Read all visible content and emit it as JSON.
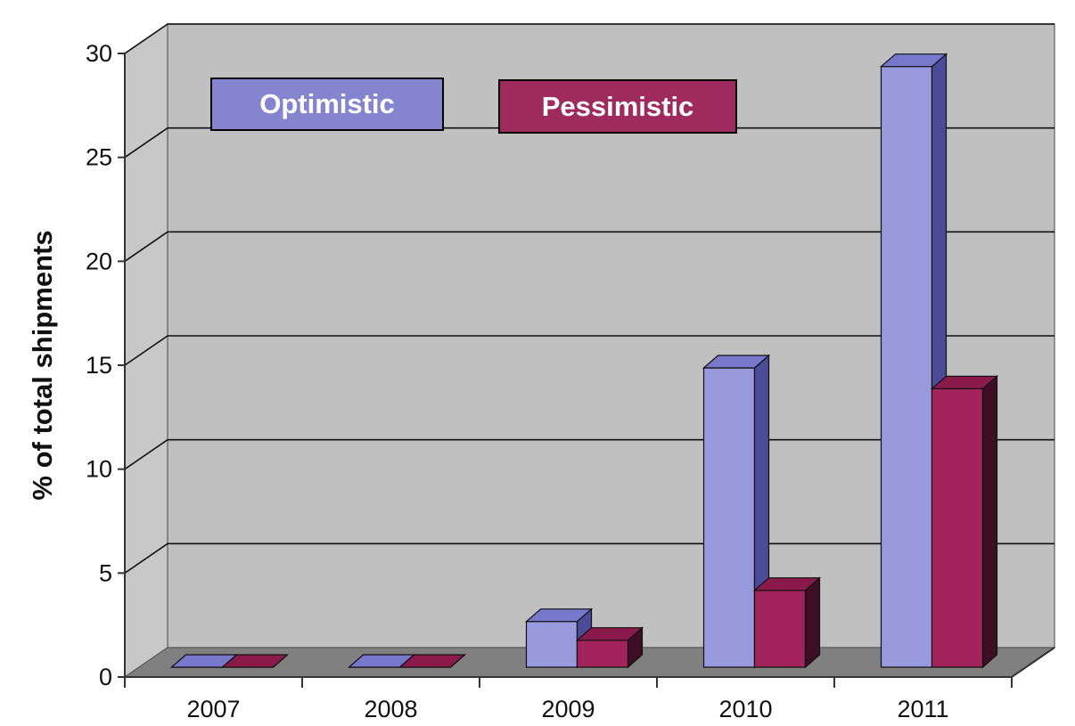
{
  "chart_data": {
    "type": "bar",
    "style": "3d-clustered-column",
    "categories": [
      "2007",
      "2008",
      "2009",
      "2010",
      "2011"
    ],
    "series": [
      {
        "name": "Optimistic",
        "values": [
          0,
          0,
          2.2,
          14.4,
          28.9
        ],
        "color": "#9999dd",
        "side_color": "#4b4b99",
        "top_color": "#7777cc"
      },
      {
        "name": "Pessimistic",
        "values": [
          0,
          0,
          1.3,
          3.7,
          13.4
        ],
        "color": "#a3245c",
        "side_color": "#3d0f24",
        "top_color": "#8a1a4a"
      }
    ],
    "title": "",
    "xlabel": "",
    "ylabel": "% of total shipments",
    "ylim": [
      0,
      30
    ],
    "yticks": [
      "0",
      "5",
      "10",
      "15",
      "20",
      "25",
      "30"
    ],
    "grid": true,
    "legend_placement": "top-left",
    "wall_color": "#c0c0c0",
    "floor_color": "#808080"
  }
}
